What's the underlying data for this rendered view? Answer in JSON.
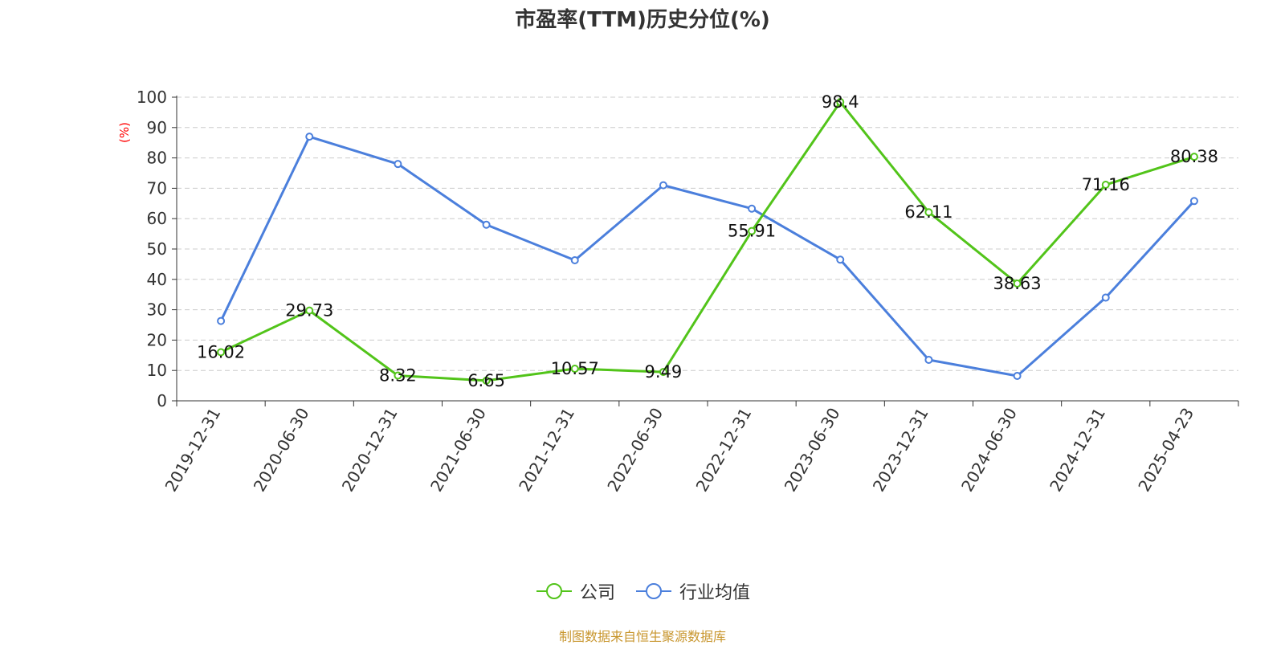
{
  "title": "市盈率(TTM)历史分位(%)",
  "source": "制图数据来自恒生聚源数据库",
  "colors": {
    "company": "#52c41a",
    "industry": "#4b7fdc",
    "grid": "#cccccc",
    "axis": "#333333",
    "ylabel": "#ff0000"
  },
  "chart_data": {
    "type": "line",
    "title": "市盈率(TTM)历史分位(%)",
    "ylabel": "(%)",
    "ylim": [
      0,
      100
    ],
    "yticks": [
      0,
      10,
      20,
      30,
      40,
      50,
      60,
      70,
      80,
      90,
      100
    ],
    "grid": true,
    "legend_position": "bottom-center",
    "categories": [
      "2019-12-31",
      "2020-06-30",
      "2020-12-31",
      "2021-06-30",
      "2021-12-31",
      "2022-06-30",
      "2022-12-31",
      "2023-06-30",
      "2023-12-31",
      "2024-06-30",
      "2024-12-31",
      "2025-04-23"
    ],
    "series": [
      {
        "name": "公司",
        "color": "#52c41a",
        "show_labels": true,
        "values": [
          16.02,
          29.73,
          8.32,
          6.65,
          10.57,
          9.49,
          55.91,
          98.4,
          62.11,
          38.63,
          71.16,
          80.38
        ]
      },
      {
        "name": "行业均值",
        "color": "#4b7fdc",
        "show_labels": false,
        "values": [
          26.3,
          87.0,
          78.0,
          58.0,
          46.3,
          71.0,
          63.3,
          46.5,
          13.5,
          8.2,
          34.0,
          65.8
        ]
      }
    ]
  }
}
